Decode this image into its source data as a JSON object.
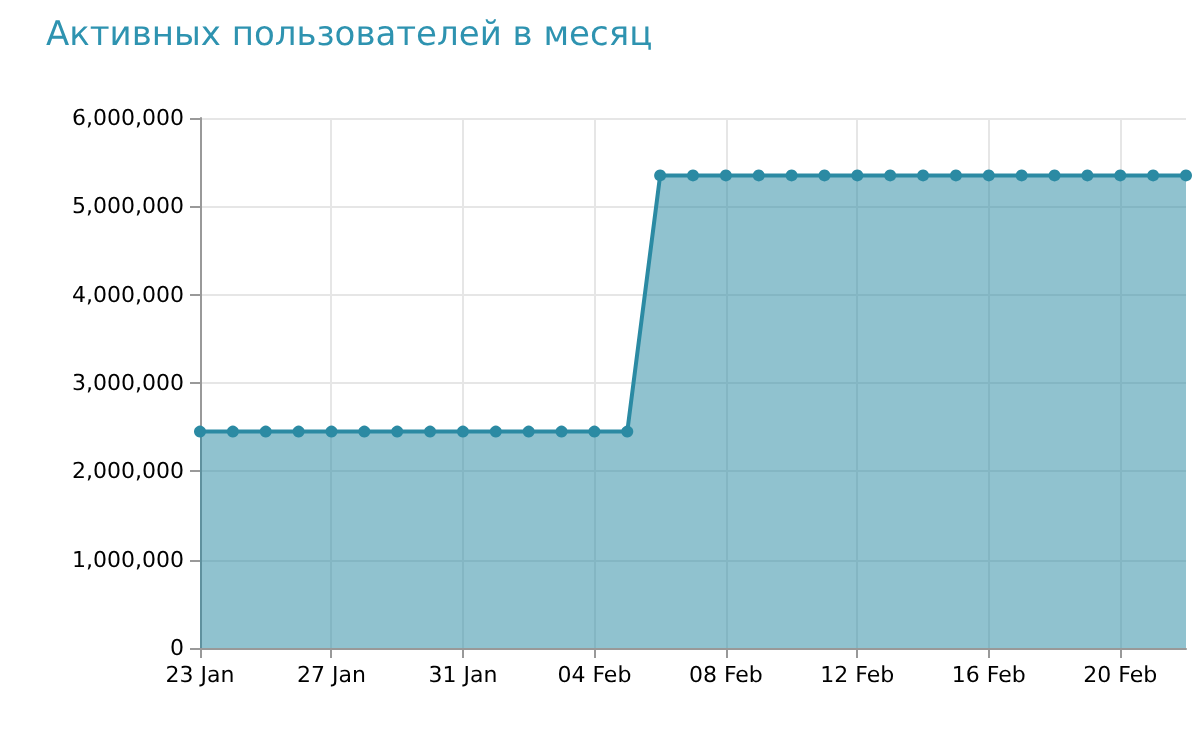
{
  "chart_data": {
    "type": "area",
    "title": "Активных пользователей в месяц",
    "x": [
      "--01-23",
      "--01-24",
      "--01-25",
      "--01-26",
      "--01-27",
      "--01-28",
      "--01-29",
      "--01-30",
      "--01-31",
      "--02-01",
      "--02-02",
      "--02-03",
      "--02-04",
      "--02-05",
      "--02-06",
      "--02-07",
      "--02-08",
      "--02-09",
      "--02-10",
      "--02-11",
      "--02-12",
      "--02-13",
      "--02-14",
      "--02-15",
      "--02-16",
      "--02-17",
      "--02-18",
      "--02-19",
      "--02-20",
      "--02-21",
      "--02-22"
    ],
    "series": [
      {
        "color": "#2b8aa3",
        "values": [
          2450000,
          2450000,
          2450000,
          2450000,
          2450000,
          2450000,
          2450000,
          2450000,
          2450000,
          2450000,
          2450000,
          2450000,
          2450000,
          2450000,
          5350000,
          5350000,
          5350000,
          5350000,
          5350000,
          5350000,
          5350000,
          5350000,
          5350000,
          5350000,
          5350000,
          5350000,
          5350000,
          5350000,
          5350000,
          5350000,
          5350000
        ]
      }
    ],
    "xlim": [
      "--01-23",
      "--02-22"
    ],
    "xticks": [
      {
        "value": "--01-23",
        "label": "23 Jan"
      },
      {
        "value": "--01-27",
        "label": "27 Jan"
      },
      {
        "value": "--01-31",
        "label": "31 Jan"
      },
      {
        "value": "--02-04",
        "label": "04 Feb"
      },
      {
        "value": "--02-08",
        "label": "08 Feb"
      },
      {
        "value": "--02-12",
        "label": "12 Feb"
      },
      {
        "value": "--02-16",
        "label": "16 Feb"
      },
      {
        "value": "--02-20",
        "label": "20 Feb"
      }
    ],
    "ylim": [
      0,
      6000000
    ],
    "yticks": [
      {
        "value": 0,
        "label": "0"
      },
      {
        "value": 1000000,
        "label": "1,000,000"
      },
      {
        "value": 2000000,
        "label": "2,000,000"
      },
      {
        "value": 3000000,
        "label": "3,000,000"
      },
      {
        "value": 4000000,
        "label": "4,000,000"
      },
      {
        "value": 5000000,
        "label": "5,000,000"
      },
      {
        "value": 6000000,
        "label": "6,000,000"
      }
    ],
    "grid": true,
    "marker": "circle",
    "line_style": "solid"
  }
}
